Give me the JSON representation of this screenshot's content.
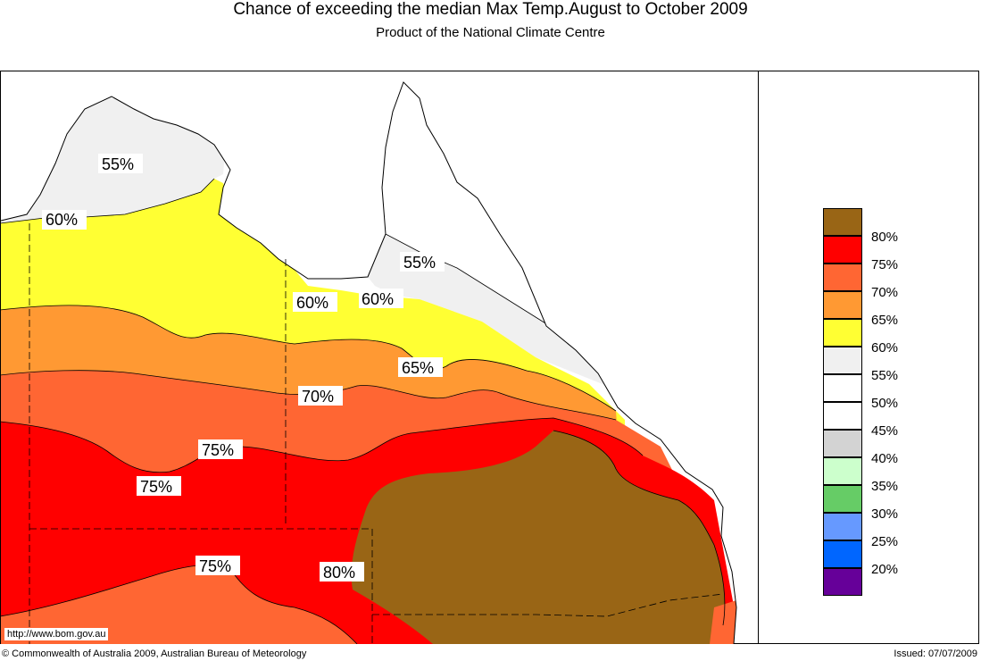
{
  "title": "Chance of exceeding the median Max Temp.August to October 2009",
  "subtitle": "Product of the National Climate Centre",
  "legend": [
    {
      "label": "80%",
      "color": "#996515"
    },
    {
      "label": "75%",
      "color": "#ff0000"
    },
    {
      "label": "70%",
      "color": "#ff6633"
    },
    {
      "label": "65%",
      "color": "#ff9933"
    },
    {
      "label": "60%",
      "color": "#ffff33"
    },
    {
      "label": "55%",
      "color": "#f0f0f0"
    },
    {
      "label": "50%",
      "color": "#ffffff"
    },
    {
      "label": "45%",
      "color": "#ffffff"
    },
    {
      "label": "40%",
      "color": "#d3d3d3"
    },
    {
      "label": "35%",
      "color": "#ccffcc"
    },
    {
      "label": "30%",
      "color": "#66cc66"
    },
    {
      "label": "25%",
      "color": "#6699ff"
    },
    {
      "label": "20%",
      "color": "#0066ff"
    },
    {
      "color": "#660099"
    }
  ],
  "contour_labels": {
    "nt_55": "55%",
    "nt_60": "60%",
    "qld_55": "55%",
    "mid_60a": "60%",
    "mid_60b": "60%",
    "band_65": "65%",
    "band_70": "70%",
    "band_75a": "75%",
    "band_75b": "75%",
    "band_75c": "75%",
    "band_80": "80%"
  },
  "url": "http://www.bom.gov.au",
  "copyright": "© Commonwealth of Australia 2009, Australian Bureau of Meteorology",
  "issued": "Issued: 07/07/2009"
}
